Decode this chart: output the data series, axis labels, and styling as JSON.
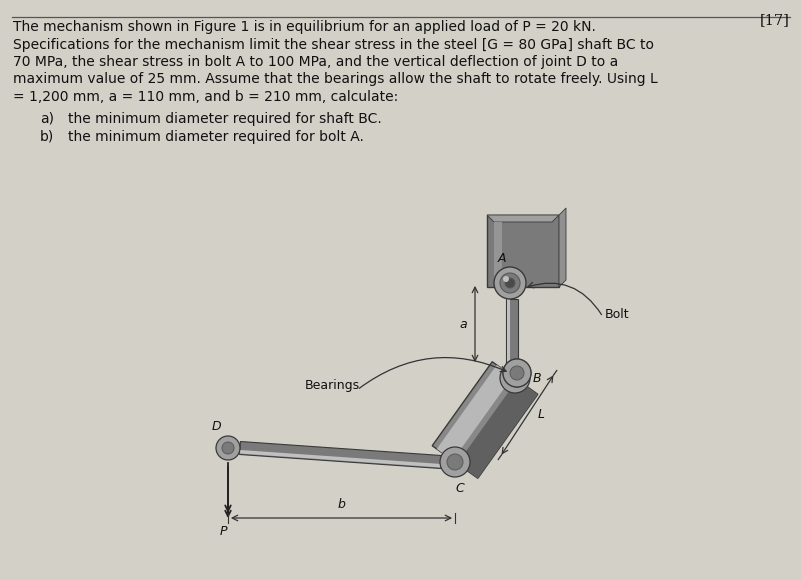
{
  "problem_number": "[17]",
  "line1": "The mechanism shown in Figure 1 is in equilibrium for an applied load of P = 20 kN.",
  "line2": "Specifications for the mechanism limit the shear stress in the steel [G = 80 GPa] shaft BC to",
  "line3": "70 MPa, the shear stress in bolt A to 100 MPa, and the vertical deflection of joint D to a",
  "line4": "maximum value of 25 mm. Assume that the bearings allow the shaft to rotate freely. Using L",
  "line5": "= 1,200 mm, a = 110 mm, and b = 210 mm, calculate:",
  "item_a": "the minimum diameter required for shaft BC.",
  "item_b": "the minimum diameter required for bolt A.",
  "bg_color": "#d3d0c8",
  "text_color": "#111111",
  "fig_width": 8.01,
  "fig_height": 5.8,
  "dpi": 100
}
